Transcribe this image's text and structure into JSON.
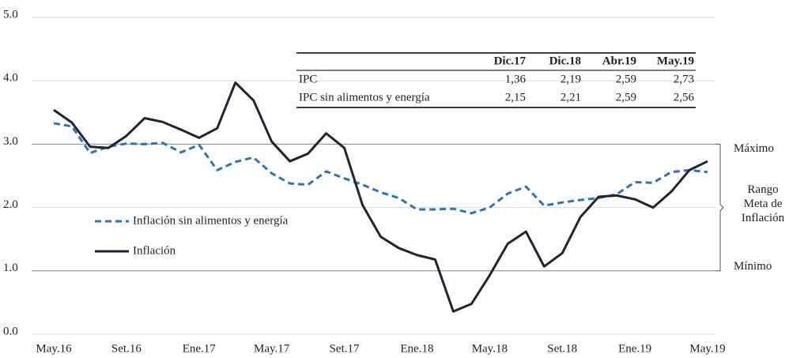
{
  "chart_data": {
    "type": "line",
    "categories": [
      "May.16",
      null,
      null,
      null,
      "Set.16",
      null,
      null,
      null,
      "Ene.17",
      null,
      null,
      null,
      "May.17",
      null,
      null,
      null,
      "Set.17",
      null,
      null,
      null,
      "Ene.18",
      null,
      null,
      null,
      "May.18",
      null,
      null,
      null,
      "Set.18",
      null,
      null,
      null,
      "Ene.19",
      null,
      null,
      null,
      "May.19"
    ],
    "series": [
      {
        "name": "Inflación sin alimentos y energía",
        "color": "#2e75b6",
        "dash": true,
        "values": [
          3.33,
          3.28,
          2.86,
          2.96,
          3.01,
          3.0,
          3.02,
          2.87,
          2.99,
          2.59,
          2.72,
          2.79,
          2.54,
          2.38,
          2.36,
          2.57,
          2.46,
          2.36,
          2.24,
          2.15,
          1.97,
          1.97,
          1.98,
          1.91,
          2.0,
          2.22,
          2.33,
          2.03,
          2.08,
          2.12,
          2.15,
          2.21,
          2.4,
          2.39,
          2.56,
          2.59,
          2.56
        ]
      },
      {
        "name": "Inflación",
        "color": "#1f2533",
        "dash": false,
        "values": [
          3.54,
          3.34,
          2.96,
          2.94,
          3.13,
          3.41,
          3.35,
          3.23,
          3.1,
          3.25,
          3.97,
          3.69,
          3.04,
          2.73,
          2.85,
          3.17,
          2.94,
          2.04,
          1.54,
          1.36,
          1.25,
          1.18,
          0.36,
          0.48,
          0.93,
          1.43,
          1.62,
          1.07,
          1.28,
          1.85,
          2.17,
          2.19,
          2.13,
          2.0,
          2.25,
          2.59,
          2.73
        ]
      }
    ],
    "ylim": [
      0,
      5
    ],
    "yticks": [
      {
        "value": 0,
        "label": "0.0"
      },
      {
        "value": 1,
        "label": "1.0"
      },
      {
        "value": 2,
        "label": "2.0"
      },
      {
        "value": 3,
        "label": "3.0"
      },
      {
        "value": 4,
        "label": "4.0"
      },
      {
        "value": 5,
        "label": "5.0"
      }
    ],
    "grid": true,
    "target_range": [
      1,
      3
    ],
    "annotations": {
      "max": "Máximo",
      "range": [
        "Rango",
        "Meta de",
        "Inflación"
      ],
      "min": "Mínimo"
    },
    "table": {
      "header": [
        "Dic.17",
        "Dic.18",
        "Abr.19",
        "May.19"
      ],
      "rows": [
        {
          "label": "IPC",
          "cells": [
            "1,36",
            "2,19",
            "2,59",
            "2,73"
          ]
        },
        {
          "label": "IPC sin alimentos y energía",
          "cells": [
            "2,15",
            "2,21",
            "2,59",
            "2,56"
          ]
        }
      ]
    }
  }
}
